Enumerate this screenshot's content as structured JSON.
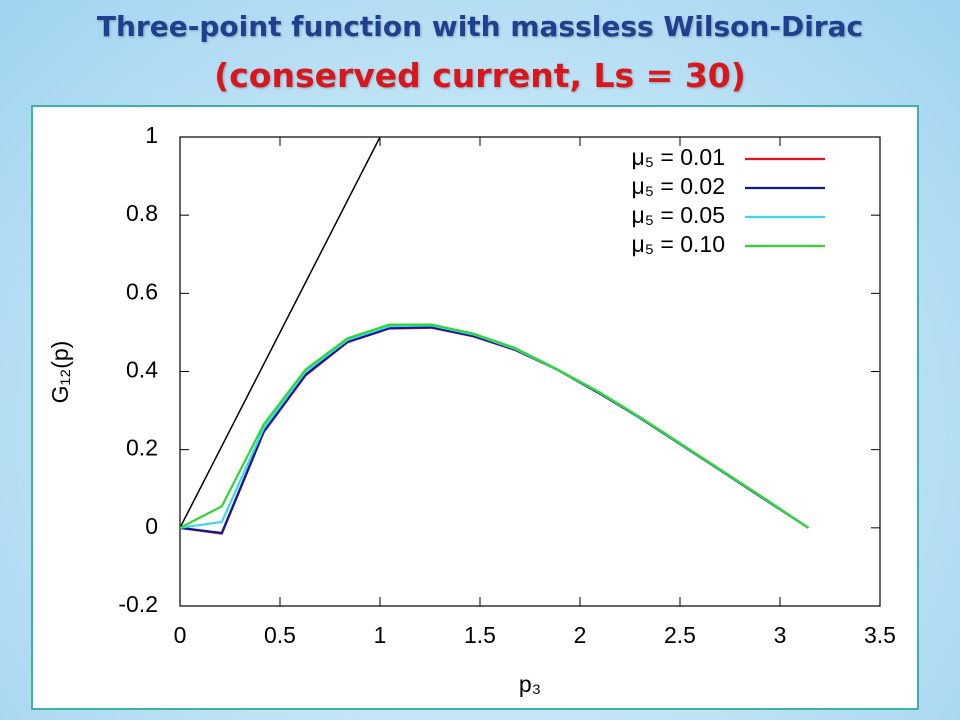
{
  "header": {
    "title": "Three-point function with massless Wilson-Dirac",
    "subtitle": "(conserved current, Ls = 30)"
  },
  "chart_data": {
    "type": "line",
    "xlabel": "p₃",
    "ylabel": "G₁₂(p)",
    "x": [
      0,
      0.209,
      0.419,
      0.628,
      0.838,
      1.047,
      1.257,
      1.466,
      1.676,
      1.885,
      2.094,
      2.304,
      2.513,
      2.723,
      2.932,
      3.142
    ],
    "series": [
      {
        "name": "μ₅ = 0.01",
        "color": "#e8121b",
        "values": [
          0,
          -0.015,
          0.245,
          0.39,
          0.475,
          0.51,
          0.512,
          0.49,
          0.455,
          0.405,
          0.345,
          0.28,
          0.21,
          0.14,
          0.07,
          0
        ]
      },
      {
        "name": "μ₅ = 0.02",
        "color": "#0a1a9a",
        "values": [
          0,
          -0.013,
          0.247,
          0.392,
          0.476,
          0.511,
          0.513,
          0.491,
          0.456,
          0.405,
          0.345,
          0.28,
          0.21,
          0.14,
          0.07,
          0
        ]
      },
      {
        "name": "μ₅ = 0.05",
        "color": "#3ad7f0",
        "values": [
          0,
          0.015,
          0.255,
          0.4,
          0.481,
          0.516,
          0.518,
          0.495,
          0.458,
          0.405,
          0.347,
          0.281,
          0.211,
          0.141,
          0.071,
          0
        ]
      },
      {
        "name": "μ₅ = 0.10",
        "color": "#2fd72f",
        "values": [
          0,
          0.055,
          0.265,
          0.405,
          0.485,
          0.52,
          0.52,
          0.497,
          0.46,
          0.406,
          0.348,
          0.282,
          0.212,
          0.142,
          0.072,
          0
        ]
      }
    ],
    "reference_line": {
      "x": [
        0,
        1
      ],
      "values": [
        0,
        1
      ],
      "color": "#000000"
    },
    "xlim": [
      0,
      3.5
    ],
    "xticks": [
      0,
      0.5,
      1,
      1.5,
      2,
      2.5,
      3,
      3.5
    ],
    "ylim": [
      -0.2,
      1
    ],
    "yticks": [
      -0.2,
      0,
      0.2,
      0.4,
      0.6,
      0.8,
      1
    ],
    "legend": "upper-right",
    "grid": false
  }
}
